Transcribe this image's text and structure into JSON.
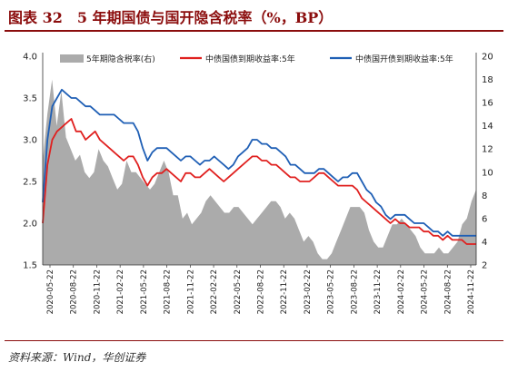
{
  "title": "图表 32　5 年期国债与国开隐含税率（%，BP）",
  "source": "资料来源：Wind，华创证券",
  "colors": {
    "gov": "#E0201F",
    "cdb": "#1F5FB5",
    "tax": "#ABABAB",
    "accent": "#8B0D0D"
  },
  "chart_data": {
    "type": "line",
    "legend_position": "top",
    "grid": false,
    "x_ticks": [
      "2020-05-22",
      "2020-08-22",
      "2020-11-22",
      "2021-02-22",
      "2021-05-22",
      "2021-08-22",
      "2021-11-22",
      "2022-02-22",
      "2022-05-22",
      "2022-08-22",
      "2022-11-22",
      "2023-02-22",
      "2023-05-22",
      "2023-08-22",
      "2023-11-22",
      "2024-02-22",
      "2024-05-22",
      "2024-08-22",
      "2024-11-22"
    ],
    "y_left": {
      "ticks": [
        "1.5",
        "2.0",
        "2.5",
        "3.0",
        "3.5",
        "4.0"
      ],
      "range": [
        1.5,
        4.0
      ]
    },
    "y_right": {
      "ticks": [
        "2",
        "4",
        "6",
        "8",
        "10",
        "12",
        "14",
        "16",
        "18",
        "20"
      ],
      "range": [
        2,
        20
      ]
    },
    "series": [
      {
        "name": "5年期隐含税率(右)",
        "type": "area",
        "axis": "right",
        "values": [
          11,
          15,
          18,
          14,
          17,
          13,
          12,
          11,
          11.5,
          10,
          9.5,
          10,
          12,
          11,
          10.5,
          9.5,
          8.5,
          9,
          11,
          10,
          10,
          9.5,
          9,
          8.5,
          9,
          10,
          11,
          10,
          8,
          8,
          6,
          6.5,
          5.5,
          6,
          6.5,
          7.5,
          8,
          7.5,
          7,
          6.5,
          6.5,
          7,
          7,
          6.5,
          6,
          5.5,
          6,
          6.5,
          7,
          7.5,
          7.5,
          7,
          6,
          6.5,
          6,
          5,
          4,
          4.5,
          4,
          3,
          2.5,
          2.5,
          3,
          4,
          5,
          6,
          7,
          7,
          7,
          6.5,
          5,
          4,
          3.5,
          3.5,
          4.5,
          5.5,
          5.5,
          6,
          5.5,
          5,
          4.5,
          3.5,
          3,
          3,
          3,
          3.5,
          3,
          3,
          3.5,
          4,
          5.5,
          6,
          7.5,
          8.5
        ]
      },
      {
        "name": "中债国债到期收益率:5年",
        "type": "line",
        "axis": "left",
        "values": [
          2.0,
          2.7,
          3.0,
          3.1,
          3.15,
          3.2,
          3.25,
          3.1,
          3.1,
          3.0,
          3.05,
          3.1,
          3.0,
          2.95,
          2.9,
          2.85,
          2.8,
          2.75,
          2.8,
          2.8,
          2.7,
          2.55,
          2.45,
          2.55,
          2.6,
          2.6,
          2.65,
          2.6,
          2.55,
          2.5,
          2.6,
          2.6,
          2.55,
          2.55,
          2.6,
          2.65,
          2.6,
          2.55,
          2.5,
          2.55,
          2.6,
          2.65,
          2.7,
          2.75,
          2.8,
          2.8,
          2.75,
          2.75,
          2.7,
          2.7,
          2.65,
          2.6,
          2.55,
          2.55,
          2.5,
          2.5,
          2.5,
          2.55,
          2.6,
          2.6,
          2.55,
          2.5,
          2.45,
          2.45,
          2.45,
          2.45,
          2.4,
          2.3,
          2.25,
          2.2,
          2.15,
          2.1,
          2.05,
          2.0,
          2.05,
          2.0,
          2.0,
          1.95,
          1.95,
          1.95,
          1.9,
          1.9,
          1.85,
          1.85,
          1.8,
          1.85,
          1.8,
          1.8,
          1.8,
          1.75,
          1.75,
          1.75
        ]
      },
      {
        "name": "中债国开债到期收益率:5年",
        "type": "line",
        "axis": "left",
        "values": [
          2.25,
          3.0,
          3.4,
          3.5,
          3.6,
          3.55,
          3.5,
          3.5,
          3.45,
          3.4,
          3.4,
          3.35,
          3.3,
          3.3,
          3.3,
          3.3,
          3.25,
          3.2,
          3.2,
          3.2,
          3.1,
          2.9,
          2.75,
          2.85,
          2.9,
          2.9,
          2.9,
          2.85,
          2.8,
          2.75,
          2.8,
          2.8,
          2.75,
          2.7,
          2.75,
          2.75,
          2.8,
          2.75,
          2.7,
          2.65,
          2.7,
          2.8,
          2.85,
          2.9,
          3.0,
          3.0,
          2.95,
          2.95,
          2.9,
          2.9,
          2.85,
          2.8,
          2.7,
          2.7,
          2.65,
          2.6,
          2.6,
          2.6,
          2.65,
          2.65,
          2.6,
          2.55,
          2.5,
          2.55,
          2.55,
          2.6,
          2.6,
          2.5,
          2.4,
          2.35,
          2.25,
          2.2,
          2.1,
          2.05,
          2.1,
          2.1,
          2.1,
          2.05,
          2.0,
          2.0,
          2.0,
          1.95,
          1.9,
          1.9,
          1.85,
          1.9,
          1.85,
          1.85,
          1.85,
          1.85,
          1.85,
          1.85
        ]
      }
    ]
  }
}
